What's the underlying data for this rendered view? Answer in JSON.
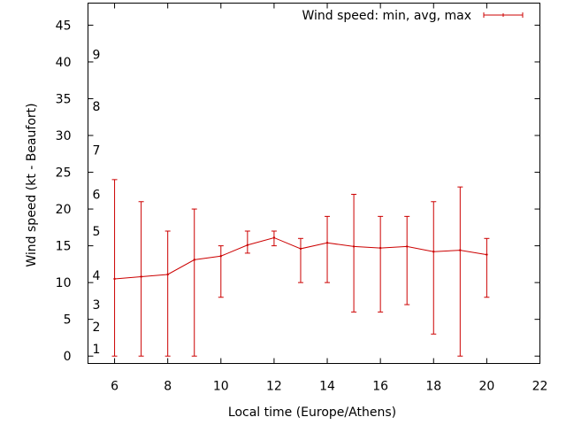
{
  "chart_data": {
    "type": "line",
    "xlabel": "Local time (Europe/Athens)",
    "ylabel": "Wind speed (kt - Beaufort)",
    "xlim": [
      5,
      22
    ],
    "ylim": [
      -1,
      48
    ],
    "x_ticks": [
      6,
      8,
      10,
      12,
      14,
      16,
      18,
      20,
      22
    ],
    "y_ticks": [
      0,
      5,
      10,
      15,
      20,
      25,
      30,
      35,
      40,
      45
    ],
    "beaufort_labels": [
      {
        "label": "1",
        "at": 1
      },
      {
        "label": "2",
        "at": 4
      },
      {
        "label": "3",
        "at": 7
      },
      {
        "label": "4",
        "at": 11
      },
      {
        "label": "5",
        "at": 17
      },
      {
        "label": "6",
        "at": 22
      },
      {
        "label": "7",
        "at": 28
      },
      {
        "label": "8",
        "at": 34
      },
      {
        "label": "9",
        "at": 41
      }
    ],
    "legend_position": "top-right",
    "series": [
      {
        "name": "Wind speed: min, avg, max",
        "color": "#cc0000",
        "x": [
          6,
          7,
          8,
          9,
          10,
          11,
          12,
          13,
          14,
          15,
          16,
          17,
          18,
          19,
          20
        ],
        "avg": [
          10.5,
          10.8,
          11.1,
          13.1,
          13.6,
          15.1,
          16.1,
          14.6,
          15.4,
          14.9,
          14.7,
          14.9,
          14.2,
          14.4,
          13.8
        ],
        "min": [
          0,
          0,
          0,
          0,
          8,
          14,
          15,
          10,
          10,
          6,
          6,
          7,
          3,
          0,
          8
        ],
        "max": [
          24,
          21,
          17,
          20,
          15,
          17,
          17,
          16,
          19,
          22,
          19,
          19,
          21,
          23,
          16
        ]
      }
    ]
  }
}
